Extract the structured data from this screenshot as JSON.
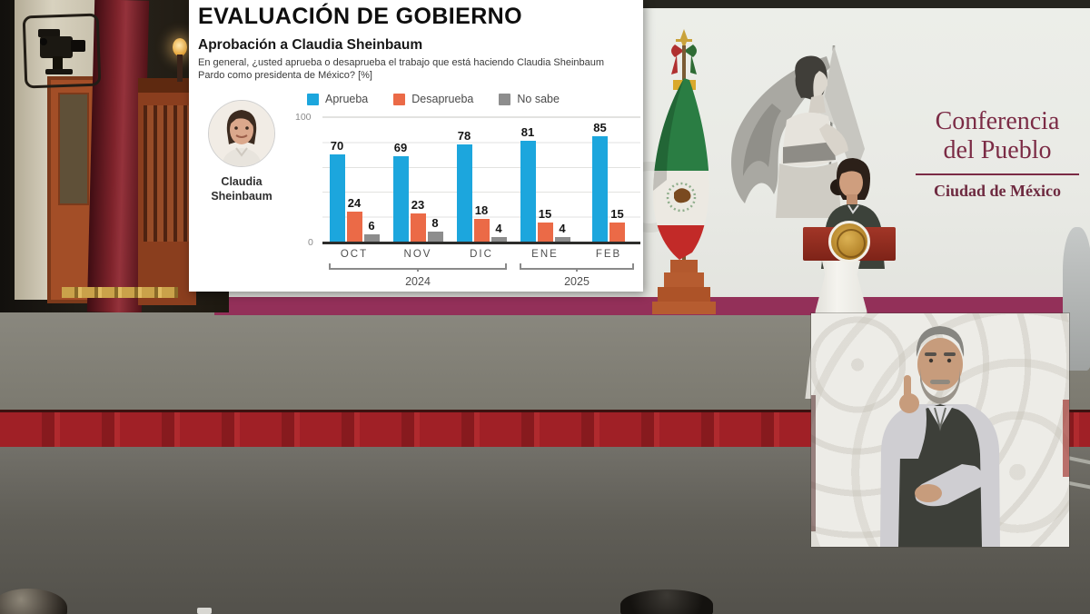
{
  "overlay": {
    "title": "EVALUACIÓN DE GOBIERNO",
    "subtitle": "Aprobación a Claudia Sheinbaum",
    "question": "En general, ¿usted aprueba o desaprueba el trabajo que está haciendo Claudia Sheinbaum Pardo como presidenta de México?  [%]",
    "person_name": "Claudia\nSheinbaum"
  },
  "chart_data": {
    "type": "bar",
    "title": "Aprobación a Claudia Sheinbaum",
    "categories": [
      "OCT",
      "NOV",
      "DIC",
      "ENE",
      "FEB"
    ],
    "year_groups": [
      {
        "label": "2024",
        "start": 0,
        "count": 3
      },
      {
        "label": "2025",
        "start": 3,
        "count": 2
      }
    ],
    "series": [
      {
        "name": "Aprueba",
        "color": "#1ca6dd",
        "values": [
          70,
          69,
          78,
          81,
          85
        ]
      },
      {
        "name": "Desaprueba",
        "color": "#eb6a47",
        "values": [
          24,
          23,
          18,
          15,
          15
        ]
      },
      {
        "name": "No sabe",
        "color": "#8d8d8d",
        "values": [
          6,
          8,
          4,
          4,
          null
        ]
      }
    ],
    "ylim": [
      0,
      100
    ],
    "gridline_step": 20,
    "y_axis_labels": [
      "100",
      "0"
    ],
    "legend_position": "top"
  },
  "backdrop": {
    "title_line1": "Conferencia",
    "title_line2": "del Pueblo",
    "subtitle": "Ciudad de México",
    "accent_color": "#933059",
    "text_color": "#7b2b45"
  },
  "colors": {
    "panel_bg": "#ffffff",
    "backdrop_wall": "#e9eae5",
    "stage_carpet": "#807e76",
    "carpet_skirt_red": "#a02026",
    "podium_top_red": "#8e2a1e",
    "seal_gold": "#c79a33"
  }
}
